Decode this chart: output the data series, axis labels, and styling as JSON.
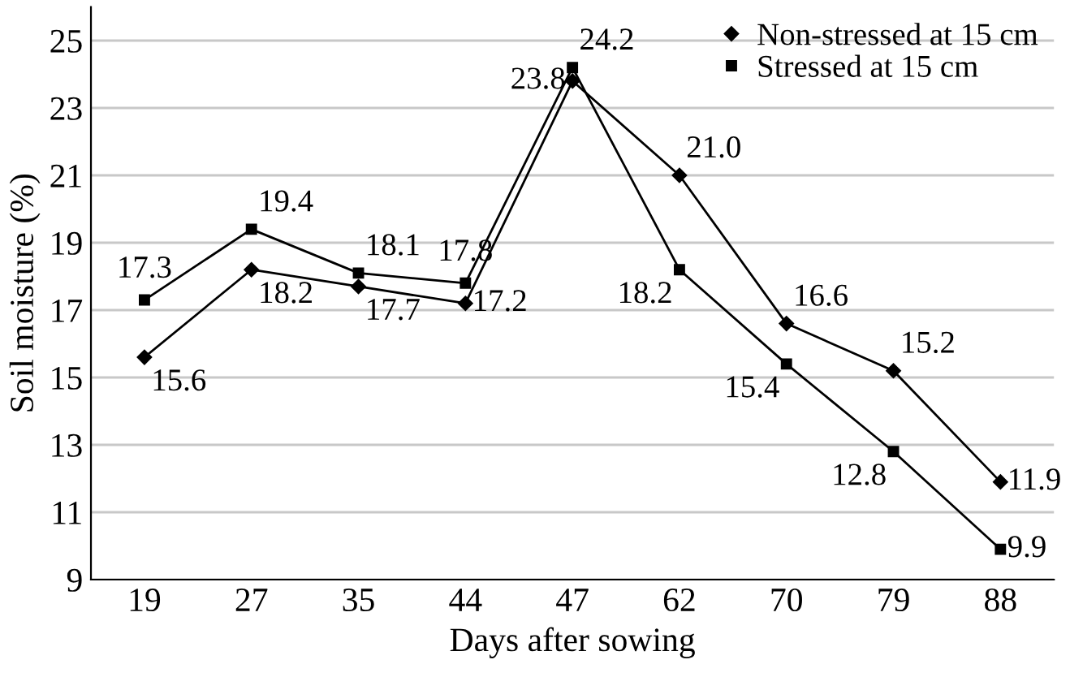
{
  "chart_data": {
    "type": "line",
    "xlabel": "Days after sowing",
    "ylabel": "Soil moisture (%)",
    "categories": [
      "19",
      "27",
      "35",
      "44",
      "47",
      "62",
      "70",
      "79",
      "88"
    ],
    "series": [
      {
        "name": "Non-stressed at 15 cm",
        "color": "#000000",
        "marker": "diamond",
        "values": [
          15.6,
          18.2,
          17.7,
          17.2,
          23.8,
          21.0,
          16.6,
          15.2,
          11.9
        ],
        "value_labels": [
          "15.6",
          "18.2",
          "17.7",
          "17.2",
          "23.8",
          "21.0",
          "16.6",
          "15.2",
          "11.9"
        ]
      },
      {
        "name": "Stressed at 15 cm",
        "color": "#000000",
        "marker": "square",
        "values": [
          17.3,
          19.4,
          18.1,
          17.8,
          24.2,
          18.2,
          15.4,
          12.8,
          9.9
        ],
        "value_labels": [
          "17.3",
          "19.4",
          "18.1",
          "17.8",
          "24.2",
          "18.2",
          "15.4",
          "12.8",
          "9.9"
        ]
      }
    ],
    "ylim": [
      9,
      26
    ],
    "yticks": [
      9,
      11,
      13,
      15,
      17,
      19,
      21,
      23,
      25
    ],
    "grid": "y",
    "legend": "top right",
    "data_labels": true,
    "line_style": "solid"
  }
}
